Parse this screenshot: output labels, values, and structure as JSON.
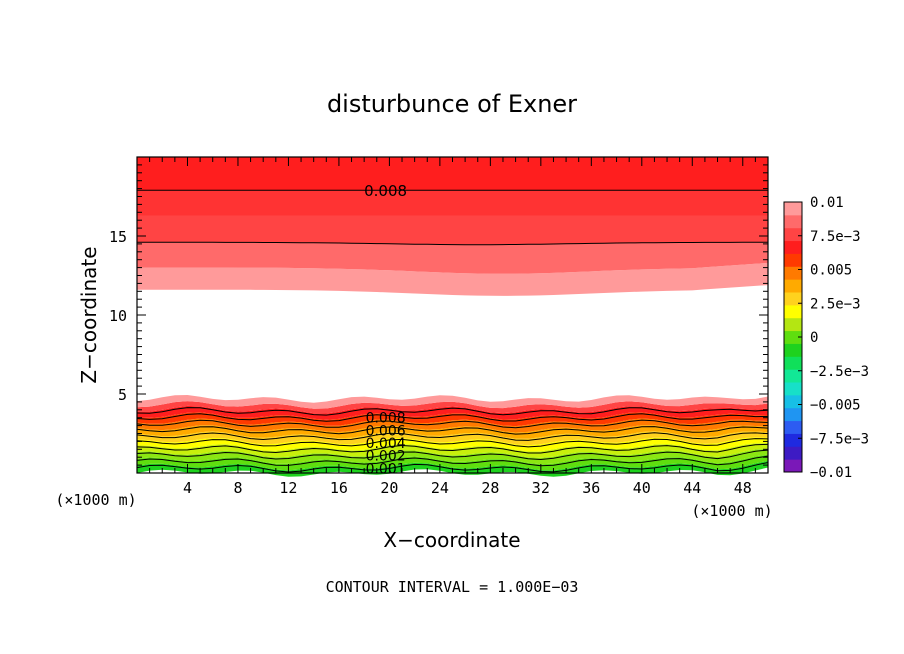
{
  "chart_data": {
    "type": "heatmap",
    "title": "disturbunce of Exner",
    "xlabel": "X−coordinate",
    "ylabel": "Z−coordinate",
    "x_unit_left": "(×1000 m)",
    "x_unit_right": "(×1000 m)",
    "xlim": [
      0,
      50
    ],
    "ylim": [
      0,
      20
    ],
    "x_ticks": [
      4,
      8,
      12,
      16,
      20,
      24,
      28,
      32,
      36,
      40,
      44,
      48
    ],
    "x_tick_labels": [
      "4",
      "8",
      "12",
      "16",
      "20",
      "24",
      "28",
      "32",
      "36",
      "40",
      "44",
      "48"
    ],
    "y_ticks": [
      5,
      10,
      15
    ],
    "y_tick_labels": [
      "5",
      "10",
      "15"
    ],
    "footer": "CONTOUR INTERVAL = 1.000E−03",
    "contour_interval": 0.001,
    "colorbar": {
      "range": [
        -0.01,
        0.01
      ],
      "tick_labels": [
        "0.01",
        "7.5e−3",
        "0.005",
        "2.5e−3",
        "0",
        "−2.5e−3",
        "−0.005",
        "−7.5e−3",
        "−0.01"
      ],
      "colors": [
        "#7a18b8",
        "#3d1bc4",
        "#1f2ae0",
        "#2d5cf2",
        "#1f95f2",
        "#17bfe6",
        "#17e0c8",
        "#12e896",
        "#10e05a",
        "#1ed21e",
        "#5fde0f",
        "#b4e612",
        "#ffff00",
        "#ffd21e",
        "#ffaa00",
        "#ff7a00",
        "#ff3a00",
        "#ff1e1e",
        "#ff4444",
        "#ff6a6a",
        "#ff9a9a"
      ]
    },
    "contour_labels_top": [
      "0.008"
    ],
    "contour_labels_bottom": [
      "0.008",
      "0.006",
      "0.004",
      "0.002",
      "0.001"
    ],
    "bands": [
      {
        "z": [
          0.0,
          0.4
        ],
        "color": "#1ed21e"
      },
      {
        "z": [
          0.4,
          0.8
        ],
        "color": "#5fde0f"
      },
      {
        "z": [
          0.8,
          1.2
        ],
        "color": "#8be612"
      },
      {
        "z": [
          1.2,
          1.6
        ],
        "color": "#c8f00c"
      },
      {
        "z": [
          1.6,
          2.0
        ],
        "color": "#ffff00"
      },
      {
        "z": [
          2.0,
          2.4
        ],
        "color": "#ffd21e"
      },
      {
        "z": [
          2.4,
          2.8
        ],
        "color": "#ffaa00"
      },
      {
        "z": [
          2.8,
          3.2
        ],
        "color": "#ff7a00"
      },
      {
        "z": [
          3.2,
          3.6
        ],
        "color": "#ff3a00"
      },
      {
        "z": [
          3.6,
          4.0
        ],
        "color": "#ff1e1e"
      },
      {
        "z": [
          4.0,
          4.3
        ],
        "color": "#ff4444"
      },
      {
        "z": [
          4.3,
          4.7
        ],
        "color": "#ff9a9a"
      },
      {
        "z": [
          11.6,
          13.0
        ],
        "color": "#ff9a9a"
      },
      {
        "z": [
          13.0,
          14.6
        ],
        "color": "#ff6a6a"
      },
      {
        "z": [
          14.6,
          16.3
        ],
        "color": "#ff4444"
      },
      {
        "z": [
          16.3,
          17.9
        ],
        "color": "#ff3333"
      },
      {
        "z": [
          17.9,
          20.0
        ],
        "color": "#ff1e1e"
      }
    ],
    "contour_lines_z": [
      0.3,
      0.7,
      1.1,
      1.5,
      1.9,
      2.3,
      2.7,
      3.1,
      3.5,
      3.9,
      14.6,
      17.9
    ],
    "grid": false
  }
}
